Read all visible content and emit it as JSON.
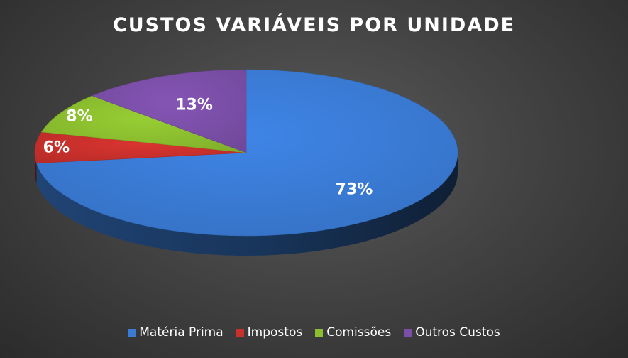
{
  "chart_data": {
    "type": "pie",
    "title": "CUSTOS VARIÁVEIS POR UNIDADE",
    "categories": [
      "Matéria Prima",
      "Impostos",
      "Comissões",
      "Outros Custos"
    ],
    "values": [
      73,
      6,
      8,
      13
    ],
    "data_labels": [
      "73%",
      "6%",
      "8%",
      "13%"
    ],
    "colors": [
      "#3a7bd5",
      "#c9302c",
      "#8cbf2f",
      "#7b4fa8"
    ],
    "legend_position": "bottom",
    "style": "3d-pie"
  }
}
